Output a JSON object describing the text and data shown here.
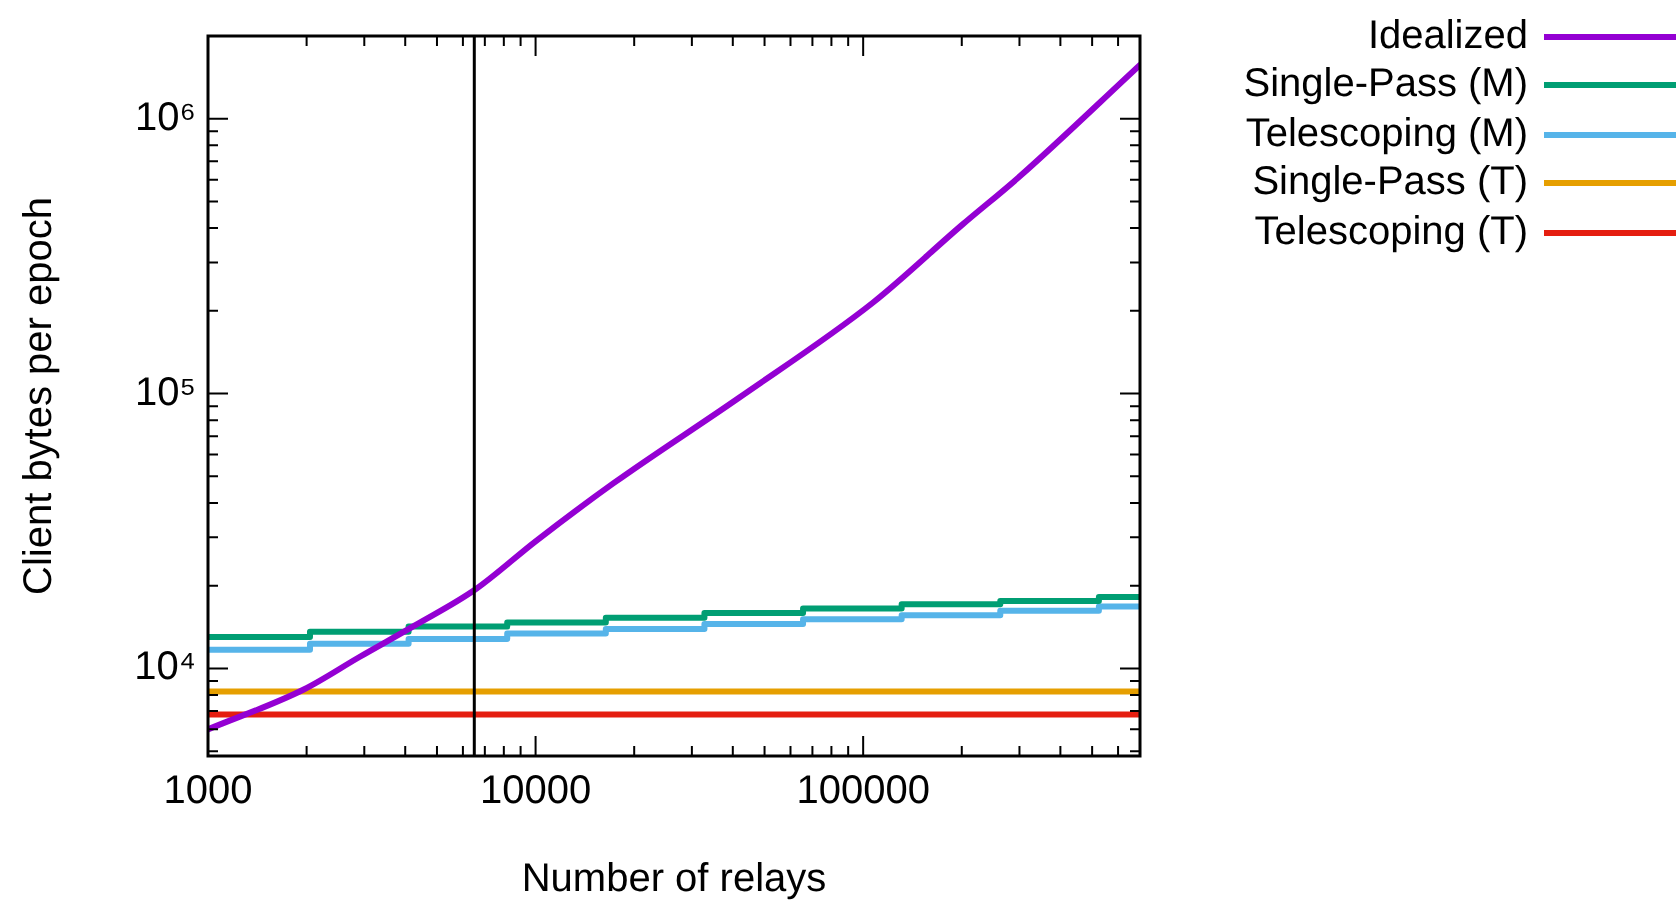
{
  "chart_data": {
    "type": "line",
    "xlabel": "Number of relays",
    "ylabel": "Client bytes per epoch",
    "log": "xy",
    "grid": false,
    "legend": "top right",
    "marker": "none",
    "xlim": [
      1000,
      700000
    ],
    "ylim": [
      4800,
      2000000
    ],
    "xticks": [
      1000,
      {
        "value": 2000,
        "label": null
      },
      {
        "value": 3000,
        "label": null
      },
      {
        "value": 4000,
        "label": null
      },
      {
        "value": 5000,
        "label": null
      },
      {
        "value": 6000,
        "label": null
      },
      {
        "value": 7000,
        "label": null
      },
      {
        "value": 8000,
        "label": null
      },
      {
        "value": 9000,
        "label": null
      },
      10000,
      {
        "value": 20000,
        "label": null
      },
      {
        "value": 30000,
        "label": null
      },
      {
        "value": 40000,
        "label": null
      },
      {
        "value": 50000,
        "label": null
      },
      {
        "value": 60000,
        "label": null
      },
      {
        "value": 70000,
        "label": null
      },
      {
        "value": 80000,
        "label": null
      },
      {
        "value": 90000,
        "label": null
      },
      100000,
      {
        "value": 200000,
        "label": null
      },
      {
        "value": 300000,
        "label": null
      },
      {
        "value": 400000,
        "label": null
      },
      {
        "value": 500000,
        "label": null
      },
      {
        "value": 600000,
        "label": null
      }
    ],
    "yticks": [
      {
        "value": 5000,
        "label": null
      },
      {
        "value": 6000,
        "label": null
      },
      {
        "value": 7000,
        "label": null
      },
      {
        "value": 8000,
        "label": null
      },
      {
        "value": 9000,
        "label": null
      },
      {
        "value": 10000,
        "label": "10⁴"
      },
      {
        "value": 20000,
        "label": null
      },
      {
        "value": 30000,
        "label": null
      },
      {
        "value": 40000,
        "label": null
      },
      {
        "value": 50000,
        "label": null
      },
      {
        "value": 60000,
        "label": null
      },
      {
        "value": 70000,
        "label": null
      },
      {
        "value": 80000,
        "label": null
      },
      {
        "value": 90000,
        "label": null
      },
      {
        "value": 100000,
        "label": "10⁵"
      },
      {
        "value": 200000,
        "label": null
      },
      {
        "value": 300000,
        "label": null
      },
      {
        "value": 400000,
        "label": null
      },
      {
        "value": 500000,
        "label": null
      },
      {
        "value": 600000,
        "label": null
      },
      {
        "value": 700000,
        "label": null
      },
      {
        "value": 800000,
        "label": null
      },
      {
        "value": 900000,
        "label": null
      },
      {
        "value": 1000000,
        "label": "10⁶"
      }
    ],
    "ref_lines": [
      {
        "axis": "x",
        "value": 6500,
        "color": "#000000"
      }
    ],
    "series": [
      {
        "name": "Idealized",
        "type": "line",
        "color": "#9400d3",
        "x": [
          1000,
          1960,
          2900,
          4270,
          6560,
          10000,
          17300,
          41900,
          107000,
          200000,
          302000,
          700000
        ],
        "values": [
          6000,
          8380,
          11000,
          14300,
          19400,
          29000,
          47200,
          96800,
          214000,
          410000,
          620000,
          1570000
        ]
      },
      {
        "name": "Single-Pass (M)",
        "type": "step",
        "color": "#009e73",
        "x": [
          1000,
          2048,
          4096,
          8192,
          16384,
          32768,
          65536,
          131072,
          262144,
          524288,
          700000
        ],
        "values": [
          13000,
          13600,
          14200,
          14700,
          15300,
          15900,
          16500,
          17100,
          17600,
          18200,
          18200
        ]
      },
      {
        "name": "Telescoping (M)",
        "type": "step",
        "color": "#56b4e9",
        "x": [
          1000,
          2048,
          4096,
          8192,
          16384,
          32768,
          65536,
          131072,
          262144,
          524288,
          700000
        ],
        "values": [
          11700,
          12300,
          12800,
          13400,
          13900,
          14500,
          15100,
          15600,
          16200,
          16800,
          16800
        ]
      },
      {
        "name": "Single-Pass (T)",
        "type": "line",
        "color": "#e69f00",
        "x": [
          1000,
          700000
        ],
        "values": [
          8240,
          8240
        ]
      },
      {
        "name": "Telescoping (T)",
        "type": "line",
        "color": "#e51e10",
        "x": [
          1000,
          700000
        ],
        "values": [
          6800,
          6800
        ]
      }
    ]
  }
}
